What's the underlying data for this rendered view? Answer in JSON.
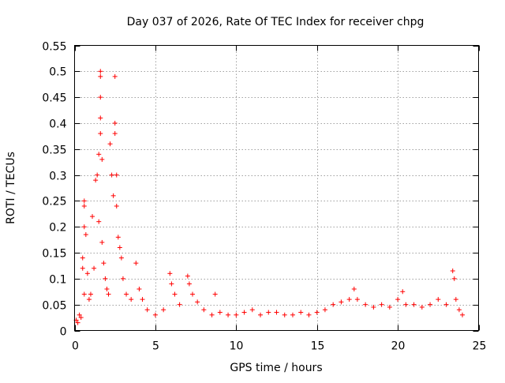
{
  "chart_data": {
    "type": "scatter",
    "title": "Day 037 of 2026, Rate Of TEC Index for receiver chpg",
    "xlabel": "GPS time / hours",
    "ylabel": "ROTI / TECUs",
    "xlim": [
      0,
      25
    ],
    "ylim": [
      0,
      0.55
    ],
    "x_ticks": [
      0,
      5,
      10,
      15,
      20,
      25
    ],
    "x_tick_labels": [
      "0",
      "5",
      "10",
      "15",
      "20",
      "25"
    ],
    "y_ticks": [
      0,
      0.05,
      0.1,
      0.15,
      0.2,
      0.25,
      0.3,
      0.35,
      0.4,
      0.45,
      0.5,
      0.55
    ],
    "y_tick_labels": [
      "0",
      "0.05",
      "0.1",
      "0.15",
      "0.2",
      "0.25",
      "0.3",
      "0.35",
      "0.4",
      "0.45",
      "0.5",
      "0.55"
    ],
    "grid": true,
    "marker": "+",
    "color": "#ff0000",
    "series": [
      {
        "name": "ROTI",
        "points": [
          [
            0.1,
            0.02
          ],
          [
            0.2,
            0.015
          ],
          [
            0.3,
            0.03
          ],
          [
            0.4,
            0.025
          ],
          [
            0.5,
            0.12
          ],
          [
            0.5,
            0.14
          ],
          [
            0.6,
            0.25
          ],
          [
            0.6,
            0.24
          ],
          [
            0.6,
            0.2
          ],
          [
            0.6,
            0.07
          ],
          [
            0.7,
            0.185
          ],
          [
            0.8,
            0.11
          ],
          [
            0.9,
            0.06
          ],
          [
            1.0,
            0.07
          ],
          [
            1.1,
            0.22
          ],
          [
            1.2,
            0.12
          ],
          [
            1.3,
            0.29
          ],
          [
            1.4,
            0.3
          ],
          [
            1.5,
            0.34
          ],
          [
            1.5,
            0.21
          ],
          [
            1.6,
            0.5
          ],
          [
            1.6,
            0.49
          ],
          [
            1.6,
            0.45
          ],
          [
            1.6,
            0.41
          ],
          [
            1.6,
            0.38
          ],
          [
            1.7,
            0.33
          ],
          [
            1.7,
            0.17
          ],
          [
            1.8,
            0.13
          ],
          [
            1.9,
            0.1
          ],
          [
            2.0,
            0.08
          ],
          [
            2.1,
            0.07
          ],
          [
            2.2,
            0.36
          ],
          [
            2.3,
            0.3
          ],
          [
            2.4,
            0.26
          ],
          [
            2.5,
            0.49
          ],
          [
            2.5,
            0.4
          ],
          [
            2.5,
            0.38
          ],
          [
            2.6,
            0.3
          ],
          [
            2.6,
            0.24
          ],
          [
            2.7,
            0.18
          ],
          [
            2.8,
            0.16
          ],
          [
            2.9,
            0.14
          ],
          [
            3.0,
            0.1
          ],
          [
            3.2,
            0.07
          ],
          [
            3.5,
            0.06
          ],
          [
            3.8,
            0.13
          ],
          [
            4.0,
            0.08
          ],
          [
            4.2,
            0.06
          ],
          [
            4.5,
            0.04
          ],
          [
            5.0,
            0.03
          ],
          [
            5.5,
            0.04
          ],
          [
            5.9,
            0.11
          ],
          [
            6.0,
            0.09
          ],
          [
            6.2,
            0.07
          ],
          [
            6.5,
            0.05
          ],
          [
            7.0,
            0.105
          ],
          [
            7.1,
            0.09
          ],
          [
            7.3,
            0.07
          ],
          [
            7.6,
            0.055
          ],
          [
            8.0,
            0.04
          ],
          [
            8.5,
            0.03
          ],
          [
            8.7,
            0.07
          ],
          [
            9.0,
            0.035
          ],
          [
            9.5,
            0.03
          ],
          [
            10.0,
            0.03
          ],
          [
            10.5,
            0.035
          ],
          [
            11.0,
            0.04
          ],
          [
            11.5,
            0.03
          ],
          [
            12.0,
            0.035
          ],
          [
            12.5,
            0.035
          ],
          [
            13.0,
            0.03
          ],
          [
            13.5,
            0.03
          ],
          [
            14.0,
            0.035
          ],
          [
            14.5,
            0.03
          ],
          [
            15.0,
            0.035
          ],
          [
            15.5,
            0.04
          ],
          [
            16.0,
            0.05
          ],
          [
            16.5,
            0.055
          ],
          [
            17.0,
            0.06
          ],
          [
            17.3,
            0.08
          ],
          [
            17.5,
            0.06
          ],
          [
            18.0,
            0.05
          ],
          [
            18.5,
            0.045
          ],
          [
            19.0,
            0.05
          ],
          [
            19.5,
            0.045
          ],
          [
            20.0,
            0.06
          ],
          [
            20.3,
            0.075
          ],
          [
            20.5,
            0.05
          ],
          [
            21.0,
            0.05
          ],
          [
            21.5,
            0.045
          ],
          [
            22.0,
            0.05
          ],
          [
            22.5,
            0.06
          ],
          [
            23.0,
            0.05
          ],
          [
            23.4,
            0.115
          ],
          [
            23.5,
            0.1
          ],
          [
            23.6,
            0.06
          ],
          [
            23.8,
            0.04
          ],
          [
            24.0,
            0.03
          ]
        ]
      }
    ]
  }
}
